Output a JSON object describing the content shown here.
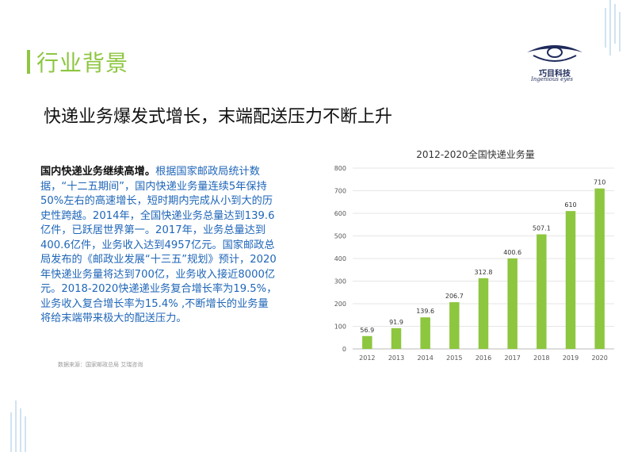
{
  "header": {
    "section_title": "行业背景"
  },
  "logo": {
    "cn": "巧目科技",
    "en": "Ingenious eyes"
  },
  "headline": "快递业务爆发式增长，末端配送压力不断上升",
  "body": {
    "lead": "国内快递业务继续高增。",
    "text": "根据国家邮政局统计数据，“十二五期间”，国内快递业务量连续5年保持50%左右的高速增长，短时期内完成从小到大的历史性跨越。2014年，全国快递业务总量达到139.6亿件，已跃居世界第一。2017年，业务总量达到400.6亿件，业务收入达到4957亿元。国家邮政总局发布的《邮政业发展“十三五”规划》预计，2020年快递业务量将达到700亿，业务收入接近8000亿元。2018-2020快递递业务复合增长率为19.5%，业务收入复合增长率为15.4% ,不断增长的业务量将给末端带来极大的配送压力。"
  },
  "source": "数据来源：国家邮政总局 艾瑞咨询",
  "colors": {
    "accent": "#8dc63f",
    "bar": "#8dc63f",
    "body_text": "#1f66b8",
    "logo": "#1e2a5a"
  },
  "chart_data": {
    "type": "bar",
    "title": "2012-2020全国快递业务量",
    "categories": [
      "2012",
      "2013",
      "2014",
      "2015",
      "2016",
      "2017",
      "2018",
      "2019",
      "2020"
    ],
    "values": [
      56.9,
      91.9,
      139.6,
      206.7,
      312.8,
      400.6,
      507.1,
      610,
      710
    ],
    "value_labels": [
      "56.9",
      "91.9",
      "139.6",
      "206.7",
      "312.8",
      "400.6",
      "507.1",
      "610",
      "710"
    ],
    "yticks": [
      "0",
      "100",
      "200",
      "300",
      "400",
      "500",
      "600",
      "700",
      "800"
    ],
    "ylim": [
      0,
      800
    ],
    "xlabel": "",
    "ylabel": "",
    "grid": true,
    "legend": "none"
  }
}
